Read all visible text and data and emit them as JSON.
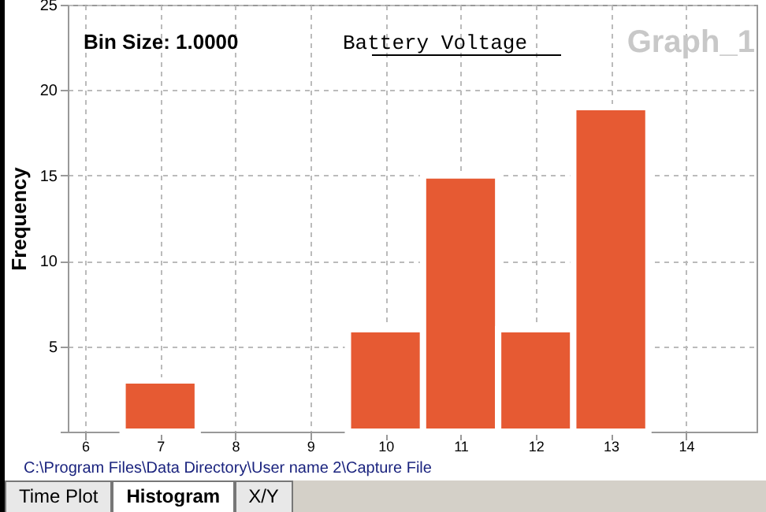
{
  "chart_data": {
    "type": "histogram",
    "title": "Battery Voltage",
    "ylabel": "Frequency",
    "bins": [
      6.5,
      7.5,
      8.5,
      9.5,
      10.5,
      11.5,
      12.5,
      13.5
    ],
    "values": [
      3,
      0,
      0,
      6,
      15,
      6,
      19
    ],
    "color": "#e65a33",
    "xlim": [
      5.77,
      14.94
    ],
    "xticks": [
      6,
      7,
      8,
      9,
      10,
      11,
      12,
      13,
      14
    ],
    "ylim": [
      0,
      25
    ],
    "yticks": [
      {
        "value": 0,
        "label": null
      },
      5,
      10,
      15,
      20,
      25
    ],
    "grid": true,
    "annotations": [
      "Bin Size: 1.0000",
      "Graph_1",
      "C:\\Program Files\\Data Directory\\User name 2\\Capture File",
      "Time Plot",
      "Histogram",
      "X/Y"
    ]
  }
}
